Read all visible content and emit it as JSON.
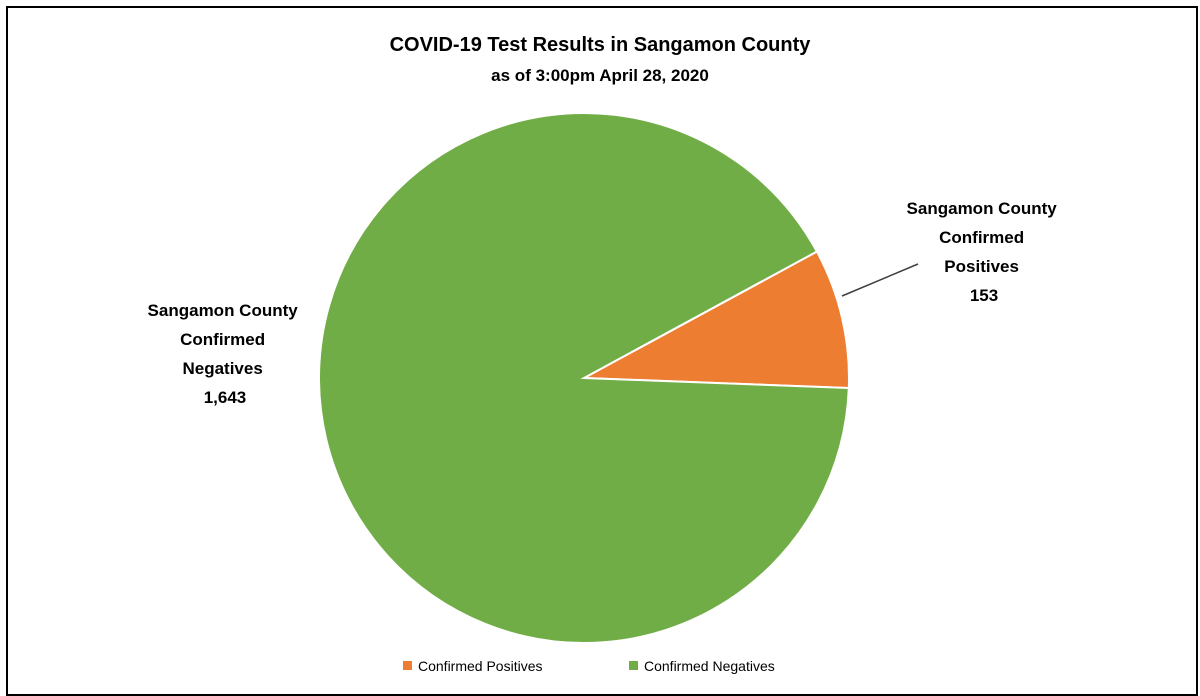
{
  "chart_data": {
    "type": "pie",
    "title": "COVID-19 Test Results in Sangamon County",
    "subtitle": "as of 3:00pm April 28, 2020",
    "series": [
      {
        "name": "Confirmed Positives",
        "value": 153,
        "color": "#ed7d31",
        "label_lines": [
          "Sangamon County",
          "Confirmed",
          "Positives",
          "153"
        ]
      },
      {
        "name": "Confirmed Negatives",
        "value": 1643,
        "color": "#70ad47",
        "label_lines": [
          "Sangamon County",
          "Confirmed",
          "Negatives",
          "1,643"
        ]
      }
    ],
    "legend": {
      "position": "bottom",
      "items": [
        "Confirmed Positives",
        "Confirmed Negatives"
      ]
    }
  }
}
